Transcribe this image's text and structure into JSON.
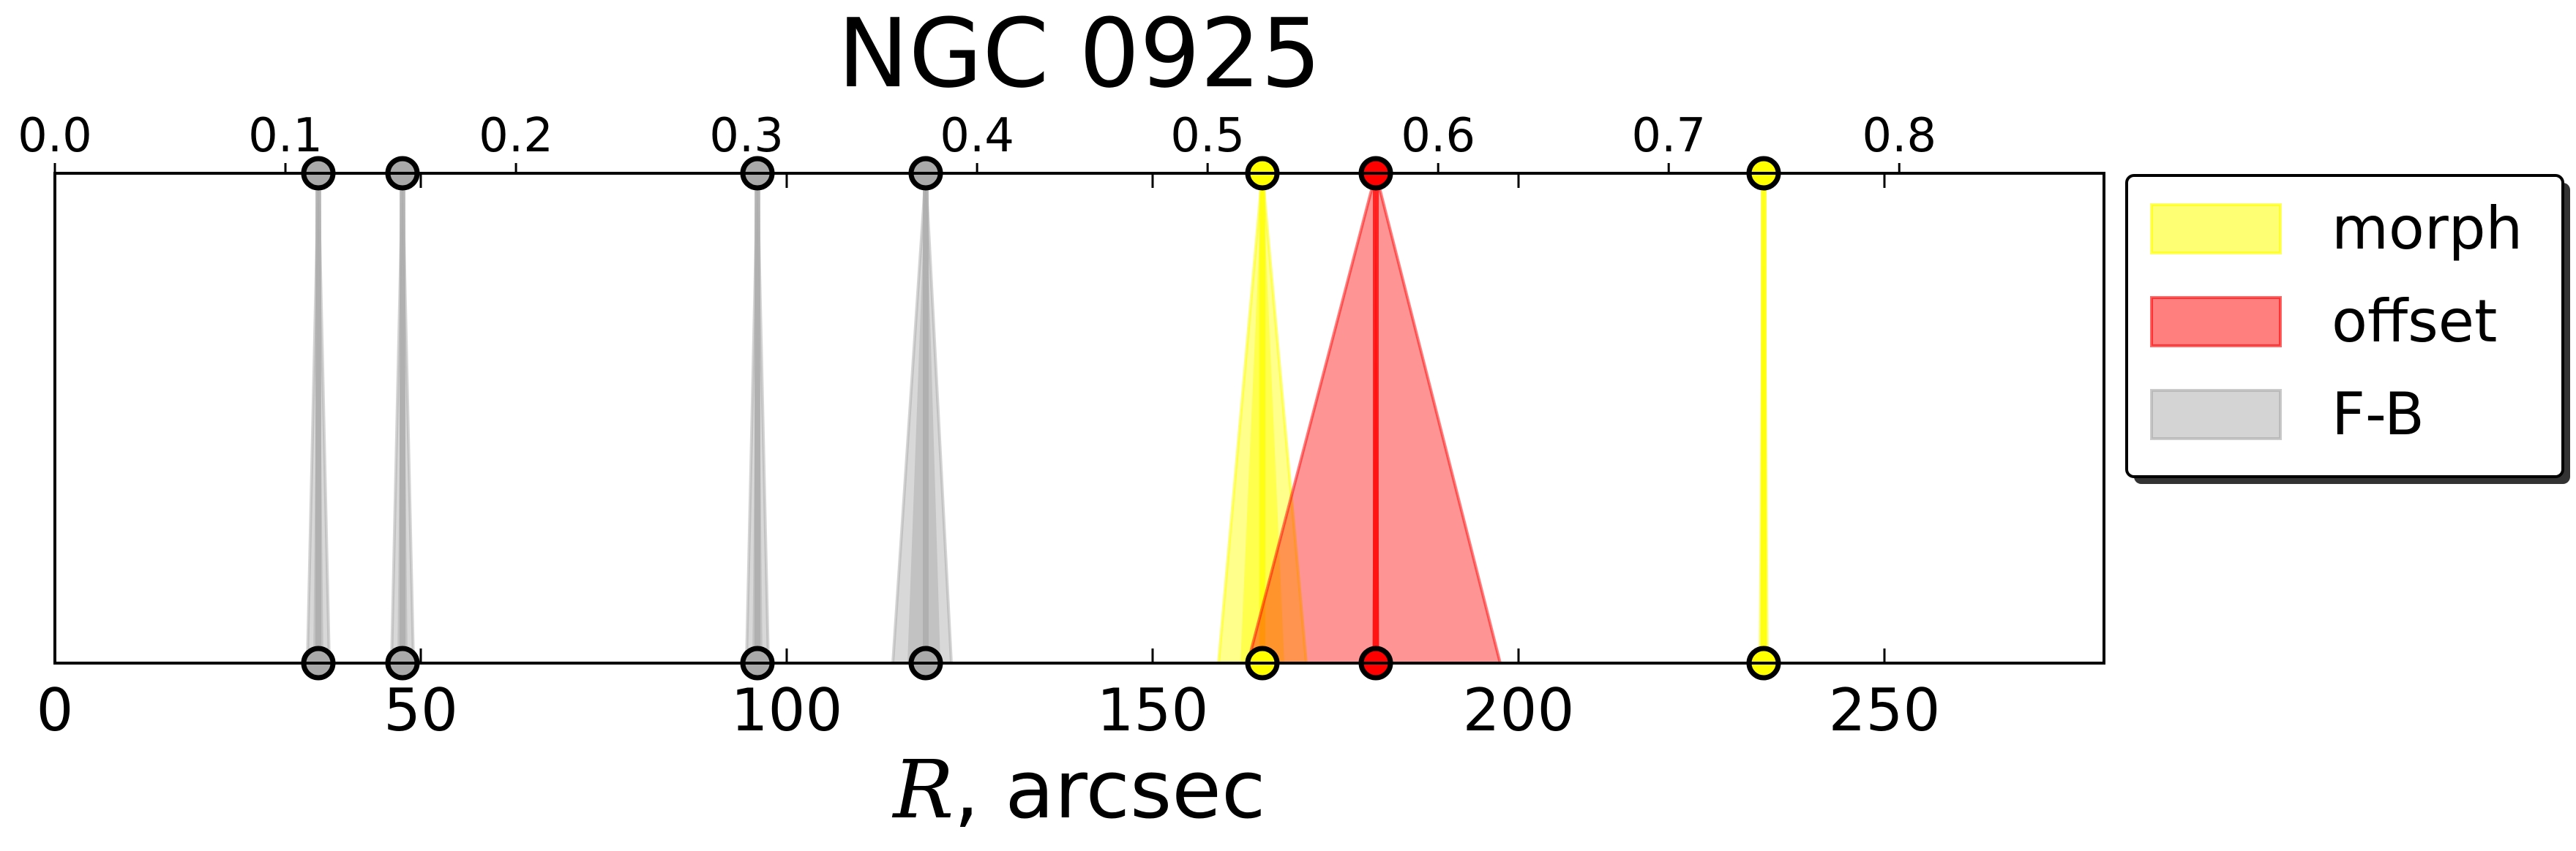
{
  "chart_data": {
    "type": "area",
    "title": "NGC 0925",
    "xlabel_symbol": "R",
    "xlabel_unit": ", arcsec",
    "xlim": [
      0,
      280
    ],
    "xticks": [
      0,
      50,
      100,
      150,
      200,
      250
    ],
    "top_xlim": [
      0,
      0.8888
    ],
    "top_xticks": [
      "0.0",
      "0.1",
      "0.2",
      "0.3",
      "0.4",
      "0.5",
      "0.6",
      "0.7",
      "0.8"
    ],
    "grid": false,
    "legend_position": "outside-right-top",
    "legend": [
      {
        "name": "morph",
        "color": "#ffff00"
      },
      {
        "name": "offset",
        "color": "#ff0000"
      },
      {
        "name": "F-B",
        "color": "#a9a9a9"
      }
    ],
    "series": [
      {
        "name": "F-B",
        "color": "#a9a9a9",
        "marker_color": "#a9a9a9",
        "peaks": [
          {
            "center": 36,
            "low": 34.5,
            "high": 37.5,
            "inner_low": 35.3,
            "inner_high": 36.7
          },
          {
            "center": 47.5,
            "low": 46,
            "high": 49,
            "inner_low": 46.8,
            "inner_high": 48.2
          },
          {
            "center": 96,
            "low": 94.5,
            "high": 97.5,
            "inner_low": 95.3,
            "inner_high": 96.7
          },
          {
            "center": 119,
            "low": 114.5,
            "high": 122.5,
            "inner_low": 116.5,
            "inner_high": 121
          }
        ]
      },
      {
        "name": "morph",
        "color": "#ffff00",
        "marker_color": "#ffff00",
        "peaks": [
          {
            "center": 165,
            "low": 159,
            "high": 171,
            "inner_low": 162,
            "inner_high": 168
          },
          {
            "center": 233.5,
            "low": 233,
            "high": 234,
            "inner_low": 233.2,
            "inner_high": 233.8
          }
        ]
      },
      {
        "name": "offset",
        "color": "#ff0000",
        "marker_color": "#ff0000",
        "peaks": [
          {
            "center": 180.5,
            "low": 163,
            "high": 197.5,
            "inner_low": 180,
            "inner_high": 181
          }
        ]
      }
    ]
  }
}
